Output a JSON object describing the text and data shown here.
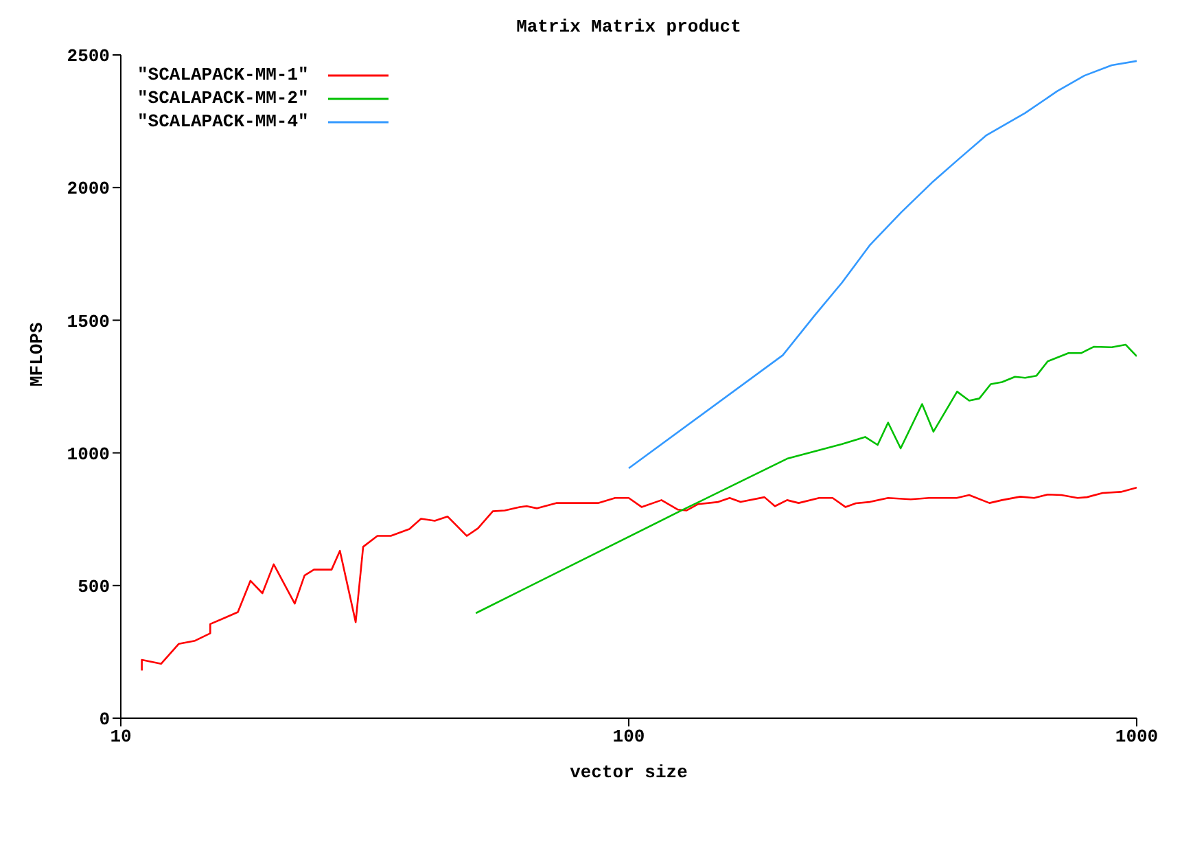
{
  "chart_data": {
    "type": "line",
    "title": "Matrix Matrix product",
    "xlabel": "vector size",
    "ylabel": "MFLOPS",
    "log": "x",
    "xlim": [
      10,
      1000
    ],
    "xticks": [
      10,
      100,
      1000
    ],
    "ylim": [
      0,
      2500
    ],
    "yticks": [
      0,
      500,
      1000,
      1500,
      2000,
      2500
    ],
    "grid": false,
    "legend": "top left",
    "marker": "none",
    "line_style": "solid",
    "series": [
      {
        "name": "\"SCALAPACK-MM-1\"",
        "color": "#ff0000",
        "x": [
          11,
          11,
          12,
          13,
          14,
          15,
          15,
          16,
          17,
          18,
          19,
          20,
          22,
          23,
          24,
          26,
          27,
          29,
          30,
          32,
          34,
          37,
          39,
          41.5,
          44,
          48,
          50.5,
          54,
          57,
          61,
          63,
          66,
          72,
          87,
          94,
          100,
          106,
          116,
          125,
          130,
          137,
          150,
          158,
          166,
          185,
          194,
          205,
          216,
          237,
          252,
          267,
          280,
          298,
          324,
          359,
          390,
          442,
          468,
          513,
          543,
          590,
          628,
          668,
          711,
          765,
          798,
          857,
          931,
          1000
        ],
        "values": [
          180,
          220,
          205,
          280,
          292,
          320,
          355,
          378,
          400,
          518,
          471,
          580,
          432,
          538,
          560,
          560,
          631,
          362,
          646,
          687,
          687,
          713,
          752,
          744,
          760,
          687,
          716,
          780,
          783,
          796,
          799,
          791,
          811,
          811,
          830,
          830,
          796,
          822,
          786,
          783,
          807,
          815,
          830,
          815,
          833,
          799,
          822,
          811,
          830,
          830,
          796,
          810,
          815,
          830,
          825,
          830,
          830,
          841,
          811,
          822,
          835,
          830,
          843,
          841,
          830,
          833,
          849,
          853,
          869
        ]
      },
      {
        "name": "\"SCALAPACK-MM-2\"",
        "color": "#00c000",
        "x": [
          50,
          127,
          205,
          263,
          292,
          309,
          324,
          343,
          378,
          398,
          443,
          468,
          490,
          516,
          543,
          576,
          603,
          635,
          668,
          734,
          777,
          823,
          893,
          951,
          1000
        ],
        "values": [
          396,
          783,
          978,
          1033,
          1060,
          1030,
          1114,
          1017,
          1184,
          1080,
          1231,
          1197,
          1205,
          1259,
          1267,
          1287,
          1283,
          1291,
          1345,
          1376,
          1376,
          1400,
          1398,
          1408,
          1364
        ]
      },
      {
        "name": "\"SCALAPACK-MM-4\"",
        "color": "#3399ff",
        "x": [
          100,
          201,
          232,
          263,
          298,
          344,
          398,
          446,
          505,
          603,
          697,
          789,
          893,
          1000
        ],
        "values": [
          942,
          1368,
          1517,
          1642,
          1782,
          1907,
          2024,
          2107,
          2196,
          2281,
          2363,
          2422,
          2461,
          2477
        ]
      }
    ]
  }
}
